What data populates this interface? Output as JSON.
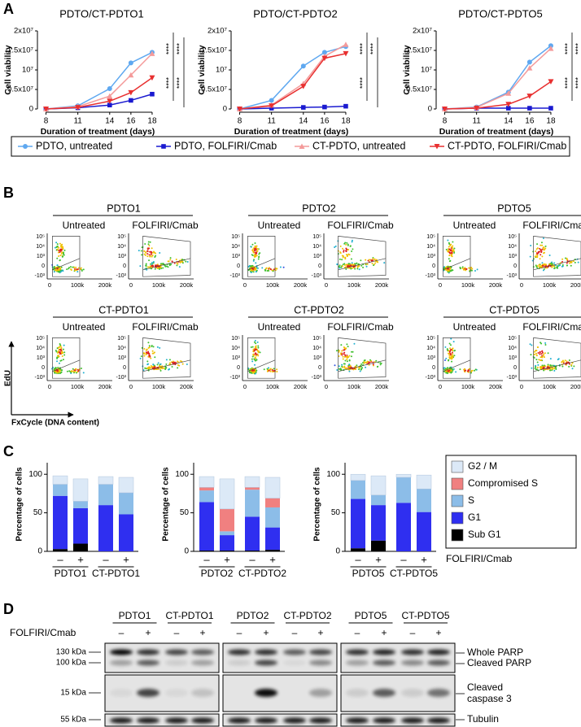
{
  "panel_a": {
    "label": "A"
  },
  "chart_data": [
    {
      "type": "line",
      "title": "PDTO/CT-PDTO1",
      "x_label": "Duration of treatment (days)",
      "y_label": "Cell viability",
      "x": [
        8,
        11,
        14,
        16,
        18
      ],
      "xlim": [
        7.5,
        19
      ],
      "xticks": [
        8,
        11,
        14,
        16,
        18
      ],
      "ylim": [
        0,
        20000000
      ],
      "yticks": [
        0,
        {
          "value": 5000000,
          "label": "0.5x10⁷"
        },
        {
          "value": 10000000,
          "label": "10⁷"
        },
        {
          "value": 15000000,
          "label": "1.5x10⁷"
        },
        {
          "value": 20000000,
          "label": "2x10⁷"
        }
      ],
      "series": [
        {
          "name": "PDTO, untreated",
          "color": "#5fa8f0",
          "marker": "circle",
          "values": [
            0,
            800000,
            5200000,
            11800000,
            14500000
          ]
        },
        {
          "name": "PDTO, FOLFIRI/Cmab",
          "color": "#1a1ad0",
          "marker": "square",
          "values": [
            0,
            300000,
            1000000,
            2200000,
            3800000
          ]
        },
        {
          "name": "CT-PDTO, untreated",
          "color": "#f49a9a",
          "marker": "triangle-up",
          "values": [
            0,
            600000,
            3300000,
            8700000,
            14200000
          ]
        },
        {
          "name": "CT-PDTO, FOLFIRI/Cmab",
          "color": "#e83030",
          "marker": "triangle-down",
          "values": [
            0,
            400000,
            2000000,
            4200000,
            8000000
          ]
        }
      ],
      "annotations": [
        "****",
        "****",
        "****",
        "****"
      ]
    },
    {
      "type": "line",
      "title": "PDTO/CT-PDTO2",
      "x_label": "Duration of treatment (days)",
      "y_label": "Cell viability",
      "x": [
        8,
        11,
        14,
        16,
        18
      ],
      "xlim": [
        7.5,
        19
      ],
      "xticks": [
        8,
        11,
        14,
        16,
        18
      ],
      "ylim": [
        0,
        20000000
      ],
      "yticks": [
        0,
        {
          "value": 5000000,
          "label": "0.5x10⁷"
        },
        {
          "value": 10000000,
          "label": "10⁷"
        },
        {
          "value": 15000000,
          "label": "1.5x10⁷"
        },
        {
          "value": 20000000,
          "label": "2x10⁷"
        }
      ],
      "series": [
        {
          "values": [
            0,
            2200000,
            11000000,
            14500000,
            16000000
          ]
        },
        {
          "values": [
            0,
            200000,
            400000,
            500000,
            700000
          ]
        },
        {
          "values": [
            0,
            1000000,
            6500000,
            13500000,
            16500000
          ]
        },
        {
          "values": [
            0,
            800000,
            5800000,
            13000000,
            14200000
          ]
        }
      ],
      "annotations": [
        "****",
        "****",
        "****"
      ]
    },
    {
      "type": "line",
      "title": "PDTO/CT-PDTO5",
      "x_label": "Duration of treatment (days)",
      "y_label": "Cell viability",
      "x": [
        8,
        11,
        14,
        16,
        18
      ],
      "xlim": [
        7.5,
        19
      ],
      "xticks": [
        8,
        11,
        14,
        16,
        18
      ],
      "ylim": [
        0,
        20000000
      ],
      "yticks": [
        0,
        {
          "value": 5000000,
          "label": "0.5x10⁷"
        },
        {
          "value": 10000000,
          "label": "10⁷"
        },
        {
          "value": 15000000,
          "label": "1.5x10⁷"
        },
        {
          "value": 20000000,
          "label": "2x10⁷"
        }
      ],
      "series": [
        {
          "values": [
            0,
            500000,
            4300000,
            12000000,
            16200000
          ]
        },
        {
          "values": [
            0,
            200000,
            200000,
            200000,
            200000
          ]
        },
        {
          "values": [
            0,
            400000,
            4000000,
            10500000,
            15500000
          ]
        },
        {
          "values": [
            0,
            200000,
            1200000,
            3300000,
            7000000
          ]
        }
      ],
      "annotations": [
        "****",
        "****",
        "****",
        "****"
      ]
    },
    {
      "type": "stacked_bar",
      "y_label": "Percentage of cells",
      "categories": [
        "–",
        "+",
        "–",
        "+"
      ],
      "groups": [
        "PDTO1",
        "CT-PDTO1"
      ],
      "ylim": [
        0,
        115
      ],
      "yticks": [
        0,
        50,
        100
      ],
      "series": [
        {
          "name": "Sub G1",
          "color": "#000000",
          "values": [
            3,
            10,
            0,
            0
          ]
        },
        {
          "name": "G1",
          "color": "#2f2ff0",
          "values": [
            69,
            46,
            60,
            48
          ]
        },
        {
          "name": "S",
          "color": "#8cbde8",
          "values": [
            15,
            9,
            27,
            28
          ]
        },
        {
          "name": "Compromised S",
          "color": "#f08080",
          "values": [
            0,
            0,
            0,
            0
          ]
        },
        {
          "name": "G2 / M",
          "color": "#dce9f7",
          "values": [
            11,
            29,
            10,
            20
          ]
        }
      ]
    },
    {
      "type": "stacked_bar",
      "y_label": "Percentage of cells",
      "categories": [
        "–",
        "+",
        "–",
        "+"
      ],
      "groups": [
        "PDTO2",
        "CT-PDTO2"
      ],
      "ylim": [
        0,
        115
      ],
      "yticks": [
        0,
        50,
        100
      ],
      "series": [
        {
          "values": [
            1,
            1,
            1,
            2
          ]
        },
        {
          "values": [
            63,
            20,
            44,
            29
          ]
        },
        {
          "values": [
            15,
            5,
            35,
            26
          ]
        },
        {
          "values": [
            4,
            29,
            3,
            12
          ]
        },
        {
          "values": [
            14,
            39,
            14,
            27
          ]
        }
      ]
    },
    {
      "type": "stacked_bar",
      "y_label": "Percentage of cells",
      "categories": [
        "–",
        "+",
        "–",
        "+"
      ],
      "groups": [
        "PDTO5",
        "CT-PDTO5"
      ],
      "ylim": [
        0,
        115
      ],
      "yticks": [
        0,
        50,
        100
      ],
      "series": [
        {
          "values": [
            4,
            14,
            0,
            0
          ]
        },
        {
          "values": [
            64,
            46,
            63,
            51
          ]
        },
        {
          "values": [
            24,
            13,
            33,
            30
          ]
        },
        {
          "values": [
            0,
            0,
            0,
            0
          ]
        },
        {
          "values": [
            8,
            25,
            4,
            18
          ]
        }
      ]
    }
  ],
  "panel_b": {
    "label": "B",
    "groups": [
      {
        "title": "PDTO1",
        "plots": [
          "Untreated",
          "FOLFIRI/Cmab"
        ]
      },
      {
        "title": "PDTO2",
        "plots": [
          "Untreated",
          "FOLFIRI/Cmab"
        ]
      },
      {
        "title": "PDTO5",
        "plots": [
          "Untreated",
          "FOLFIRI/Cmab"
        ]
      },
      {
        "title": "CT-PDTO1",
        "plots": [
          "Untreated",
          "FOLFIRI/Cmab"
        ]
      },
      {
        "title": "CT-PDTO2",
        "plots": [
          "Untreated",
          "FOLFIRI/Cmab"
        ]
      },
      {
        "title": "CT-PDTO5",
        "plots": [
          "Untreated",
          "FOLFIRI/Cmab"
        ]
      }
    ],
    "yticks": [
      "10⁵",
      "10⁴",
      "10³",
      "0",
      "-10³"
    ],
    "xticks": [
      "0",
      "100k",
      "200k"
    ],
    "y_label": "EdU",
    "x_label": "FxCycle (DNA content)"
  },
  "panel_c": {
    "label": "C",
    "treatment_label": "FOLFIRI/Cmab"
  },
  "panel_d": {
    "label": "D",
    "treatment_label": "FOLFIRI/Cmab",
    "blots": [
      {
        "lines": [
          "PDTO1",
          "CT-PDTO1"
        ],
        "lanes": [
          "–",
          "+",
          "–",
          "+"
        ]
      },
      {
        "lines": [
          "PDTO2",
          "CT-PDTO2"
        ],
        "lanes": [
          "–",
          "+",
          "–",
          "+"
        ]
      },
      {
        "lines": [
          "PDTO5",
          "CT-PDTO5"
        ],
        "lanes": [
          "–",
          "+",
          "–",
          "+"
        ]
      }
    ],
    "markers": [
      "130 kDa",
      "100 kDa",
      "15 kDa",
      "55 kDa"
    ],
    "bands": [
      "Whole PARP",
      "Cleaved PARP",
      "Cleaved",
      "caspase 3",
      "Tubulin"
    ]
  }
}
